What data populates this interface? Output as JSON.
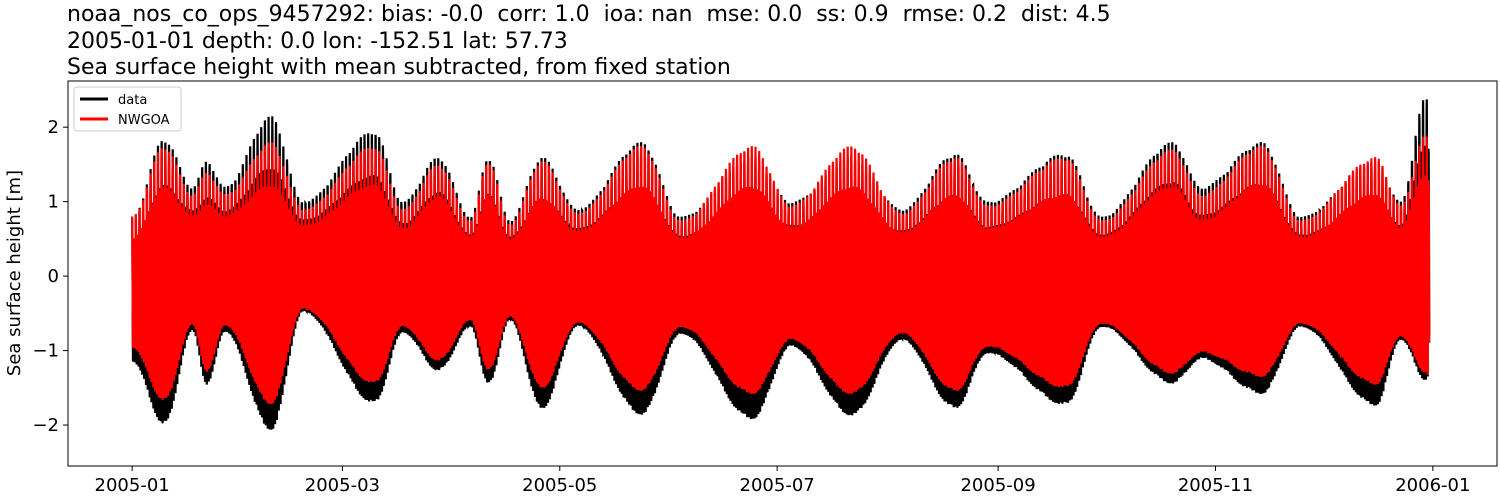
{
  "chart_data": {
    "type": "line",
    "title_lines": [
      "noaa_nos_co_ops_9457292: bias: -0.0  corr: 1.0  ioa: nan  mse: 0.0  ss: 0.9  rmse: 0.2  dist: 4.5",
      "2005-01-01 depth: 0.0 lon: -152.51 lat: 57.73",
      "Sea surface height with mean subtracted, from fixed station"
    ],
    "xlabel": "",
    "ylabel": "Sea surface height [m]",
    "xlim": [
      "2004-12-14",
      "2006-01-19"
    ],
    "ylim": [
      -2.55,
      2.62
    ],
    "x_ticks": [
      "2005-01",
      "2005-03",
      "2005-05",
      "2005-07",
      "2005-09",
      "2005-11",
      "2006-01"
    ],
    "y_ticks": [
      -2,
      -1,
      0,
      1,
      2
    ],
    "grid": false,
    "legend": "top-left",
    "series": [
      {
        "name": "data",
        "color": "#000000",
        "envelope": {
          "dates": [
            "2005-01-01",
            "2005-01-10",
            "2005-01-18",
            "2005-01-22",
            "2005-01-27",
            "2005-02-09",
            "2005-02-18",
            "2005-03-10",
            "2005-03-18",
            "2005-03-28",
            "2005-04-06",
            "2005-04-11",
            "2005-04-17",
            "2005-04-26",
            "2005-05-06",
            "2005-05-24",
            "2005-06-04",
            "2005-06-24",
            "2005-07-05",
            "2005-07-22",
            "2005-08-05",
            "2005-08-20",
            "2005-08-29",
            "2005-09-20",
            "2005-09-30",
            "2005-10-20",
            "2005-10-28",
            "2005-11-14",
            "2005-11-25",
            "2005-12-16",
            "2005-12-23",
            "2005-12-30",
            "2005-12-31"
          ],
          "max": [
            0.8,
            1.85,
            1.2,
            1.55,
            1.2,
            2.15,
            1.0,
            1.95,
            1.0,
            1.6,
            0.8,
            1.6,
            0.75,
            1.6,
            0.9,
            1.8,
            0.8,
            1.6,
            1.0,
            1.6,
            0.9,
            1.65,
            1.0,
            1.65,
            0.8,
            1.8,
            1.2,
            1.8,
            0.8,
            1.55,
            1.0,
            2.4,
            2.3
          ],
          "min": [
            -1.3,
            -2.3,
            -0.9,
            -1.7,
            -0.9,
            -2.4,
            -0.6,
            -2.0,
            -0.9,
            -1.5,
            -0.8,
            -1.7,
            -0.7,
            -2.05,
            -0.8,
            -2.15,
            -0.9,
            -2.2,
            -1.1,
            -2.15,
            -1.0,
            -2.05,
            -1.2,
            -2.0,
            -0.8,
            -1.7,
            -1.3,
            -1.85,
            -0.8,
            -2.0,
            -1.0,
            -1.7,
            -1.6
          ]
        }
      },
      {
        "name": "NWGOA",
        "color": "#ff0000",
        "envelope": {
          "dates": [
            "2005-01-01",
            "2005-01-10",
            "2005-01-18",
            "2005-01-22",
            "2005-01-27",
            "2005-02-09",
            "2005-02-18",
            "2005-03-10",
            "2005-03-18",
            "2005-03-28",
            "2005-04-06",
            "2005-04-11",
            "2005-04-17",
            "2005-04-26",
            "2005-05-06",
            "2005-05-24",
            "2005-06-04",
            "2005-06-24",
            "2005-07-05",
            "2005-07-22",
            "2005-08-05",
            "2005-08-20",
            "2005-08-29",
            "2005-09-20",
            "2005-09-30",
            "2005-10-20",
            "2005-10-28",
            "2005-11-14",
            "2005-11-25",
            "2005-12-16",
            "2005-12-23",
            "2005-12-30",
            "2005-12-31"
          ],
          "max": [
            0.8,
            1.75,
            1.1,
            1.4,
            1.1,
            1.8,
            0.9,
            1.75,
            0.9,
            1.5,
            0.75,
            1.55,
            0.7,
            1.55,
            0.85,
            1.75,
            0.75,
            1.75,
            0.95,
            1.75,
            0.85,
            1.6,
            0.95,
            1.6,
            0.75,
            1.7,
            1.1,
            1.75,
            0.75,
            1.6,
            0.95,
            1.9,
            1.8
          ],
          "min": [
            -1.1,
            -1.95,
            -0.8,
            -1.5,
            -0.8,
            -2.0,
            -0.55,
            -1.7,
            -0.8,
            -1.35,
            -0.7,
            -1.5,
            -0.65,
            -1.75,
            -0.75,
            -1.8,
            -0.8,
            -1.85,
            -1.0,
            -1.85,
            -0.9,
            -1.8,
            -1.1,
            -1.75,
            -0.75,
            -1.55,
            -1.2,
            -1.6,
            -0.75,
            -1.7,
            -0.95,
            -1.55,
            -1.6
          ]
        }
      }
    ]
  }
}
